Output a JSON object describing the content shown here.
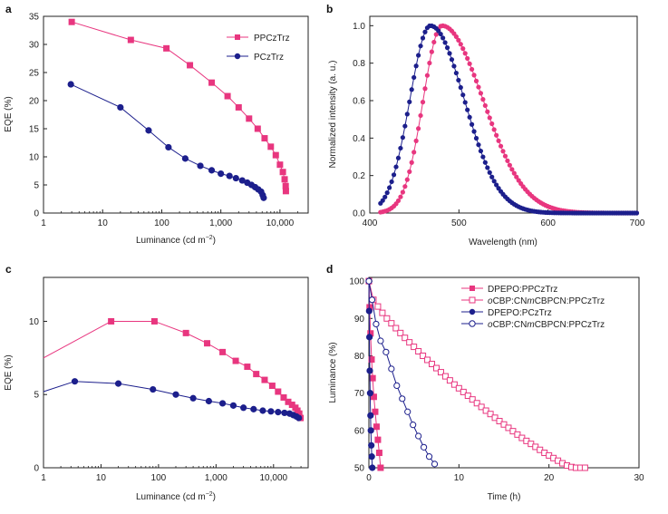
{
  "colors": {
    "pink": "#e8367f",
    "blue": "#1c1f8c",
    "axis": "#222222"
  },
  "chart_data": [
    {
      "id": "a",
      "panel_label": "a",
      "type": "line",
      "xscale": "log",
      "xlabel": "Luminance (cd m",
      "xlabel_sup": "−2",
      "ylabel": "EQE (%)",
      "xlim": [
        1,
        30000
      ],
      "ylim": [
        0,
        35
      ],
      "xticks": [
        1,
        10,
        100,
        1000,
        10000
      ],
      "xtick_labels": [
        "1",
        "10",
        "100",
        "1,000",
        "10,000"
      ],
      "yticks": [
        0,
        5,
        10,
        15,
        20,
        25,
        30,
        35
      ],
      "ytick_labels": [
        "0",
        "5",
        "10",
        "15",
        "20",
        "25",
        "30",
        "35"
      ],
      "legend": {
        "position": "top-right"
      },
      "series": [
        {
          "name": "PPCzTrz",
          "color": "pink",
          "marker": "square",
          "filled": true,
          "x": [
            3,
            30,
            120,
            300,
            700,
            1300,
            2000,
            3000,
            4200,
            5500,
            7000,
            8500,
            10000,
            11200,
            12000,
            12500,
            12600
          ],
          "y": [
            34,
            30.8,
            29.3,
            26.3,
            23.2,
            20.8,
            18.8,
            16.8,
            15,
            13.3,
            11.8,
            10.3,
            8.6,
            7.3,
            6,
            4.8,
            3.9
          ]
        },
        {
          "name": "PCzTrz",
          "color": "blue",
          "marker": "circle",
          "filled": true,
          "x": [
            2.9,
            20,
            60,
            130,
            250,
            450,
            700,
            1000,
            1400,
            1800,
            2300,
            2800,
            3300,
            3800,
            4300,
            4800,
            5100,
            5300
          ],
          "y": [
            22.9,
            18.8,
            14.7,
            11.7,
            9.7,
            8.4,
            7.6,
            7,
            6.6,
            6.2,
            5.8,
            5.4,
            5,
            4.6,
            4.2,
            3.8,
            3.2,
            2.7
          ]
        }
      ]
    },
    {
      "id": "b",
      "panel_label": "b",
      "type": "line",
      "xscale": "linear",
      "xlabel": "Wavelength (nm)",
      "ylabel": "Normalized intensity (a. u.)",
      "xlim": [
        400,
        700
      ],
      "ylim": [
        0,
        1.05
      ],
      "xticks": [
        400,
        500,
        600,
        700
      ],
      "xtick_labels": [
        "400",
        "500",
        "600",
        "700"
      ],
      "yticks": [
        0,
        0.2,
        0.4,
        0.6,
        0.8,
        1.0
      ],
      "ytick_labels": [
        "0.0",
        "0.2",
        "0.4",
        "0.6",
        "0.8",
        "1.0"
      ],
      "series": [
        {
          "name": "PPCzTrz",
          "color": "pink",
          "marker": "circle",
          "filled": true,
          "peak": 481,
          "sigma_left": 21,
          "sigma_right": 46,
          "x_start": 412,
          "x_end": 700,
          "x_step": 2.5
        },
        {
          "name": "PCzTrz",
          "color": "blue",
          "marker": "circle",
          "filled": true,
          "peak": 468,
          "sigma_left": 23,
          "sigma_right": 38,
          "x_start": 412,
          "x_end": 700,
          "x_step": 2.5
        }
      ]
    },
    {
      "id": "c",
      "panel_label": "c",
      "type": "line",
      "xscale": "log",
      "xlabel": "Luminance (cd m",
      "xlabel_sup": "−2",
      "ylabel": "EQE (%)",
      "xlim": [
        1,
        40000
      ],
      "ylim": [
        0,
        13
      ],
      "xticks": [
        1,
        10,
        100,
        1000,
        10000
      ],
      "xtick_labels": [
        "1",
        "10",
        "100",
        "1,000",
        "10,000"
      ],
      "yticks": [
        0,
        5,
        10
      ],
      "ytick_labels": [
        "0",
        "5",
        "10"
      ],
      "series": [
        {
          "name": "PPCzTrz",
          "color": "pink",
          "marker": "square",
          "filled": true,
          "x": [
            15,
            85,
            300,
            700,
            1300,
            2200,
            3500,
            5000,
            7000,
            9500,
            12000,
            15000,
            18000,
            21000,
            24000,
            26000,
            28000,
            29500
          ],
          "y": [
            10,
            10,
            9.2,
            8.5,
            7.9,
            7.3,
            6.9,
            6.4,
            6,
            5.6,
            5.2,
            4.8,
            4.5,
            4.3,
            4.1,
            3.9,
            3.7,
            3.4
          ]
        },
        {
          "name": "PCzTrz",
          "color": "blue",
          "marker": "circle",
          "filled": true,
          "x": [
            3.5,
            20,
            80,
            200,
            400,
            750,
            1300,
            2000,
            3000,
            4500,
            6500,
            9000,
            12000,
            15500,
            19000,
            22000,
            25000,
            27500
          ],
          "y": [
            5.9,
            5.75,
            5.35,
            5,
            4.75,
            4.55,
            4.4,
            4.25,
            4.1,
            4,
            3.9,
            3.85,
            3.8,
            3.75,
            3.7,
            3.6,
            3.5,
            3.4
          ]
        }
      ],
      "line_only": [
        {
          "color": "pink",
          "x": [
            1,
            15
          ],
          "y": [
            7.5,
            10
          ]
        },
        {
          "color": "blue",
          "x": [
            1,
            3.5
          ],
          "y": [
            5.2,
            5.9
          ]
        }
      ]
    },
    {
      "id": "d",
      "panel_label": "d",
      "type": "line",
      "xscale": "linear",
      "xlabel": "Time (h)",
      "ylabel": "Luminance (%)",
      "xlim": [
        0,
        30
      ],
      "ylim": [
        50,
        101
      ],
      "xticks": [
        0,
        10,
        20,
        30
      ],
      "xtick_labels": [
        "0",
        "10",
        "20",
        "30"
      ],
      "yticks": [
        50,
        60,
        70,
        80,
        90,
        100
      ],
      "ytick_labels": [
        "50",
        "60",
        "70",
        "80",
        "90",
        "100"
      ],
      "legend": {
        "position": "top-right"
      },
      "series": [
        {
          "name": "DPEPO:PPCzTrz",
          "color": "pink",
          "marker": "square",
          "filled": true,
          "x": [
            0,
            0.08,
            0.18,
            0.3,
            0.42,
            0.55,
            0.7,
            0.85,
            1.0,
            1.15,
            1.3
          ],
          "y": [
            100,
            93,
            86,
            79,
            74,
            69,
            65,
            61,
            57.5,
            54,
            50
          ]
        },
        {
          "name": "oCBP:CNmCBPCN:PPCzTrz",
          "name_parts": [
            "o",
            "CBP:CN",
            "m",
            "CBPCN:PPCzTrz"
          ],
          "color": "pink",
          "marker": "square",
          "filled": false,
          "x": [
            0,
            0.5,
            1,
            1.5,
            2,
            2.5,
            3,
            3.5,
            4,
            4.5,
            5,
            5.5,
            6,
            6.5,
            7,
            7.5,
            8,
            8.5,
            9,
            9.5,
            10,
            10.5,
            11,
            11.5,
            12,
            12.5,
            13,
            13.5,
            14,
            14.5,
            15,
            15.5,
            16,
            16.5,
            17,
            17.5,
            18,
            18.5,
            19,
            19.5,
            20,
            20.5,
            21,
            21.5,
            22,
            22.5,
            23,
            23.5,
            24
          ],
          "y": [
            100,
            95,
            93.2,
            91.5,
            90,
            88.7,
            87.4,
            86.1,
            84.8,
            83.6,
            82.4,
            81.2,
            80,
            78.9,
            77.8,
            76.7,
            75.6,
            74.5,
            73.4,
            72.3,
            71.3,
            70.3,
            69.3,
            68.3,
            67.3,
            66.3,
            65.3,
            64.4,
            63.4,
            62.5,
            61.6,
            60.7,
            59.8,
            58.9,
            58,
            57.2,
            56.4,
            55.6,
            54.8,
            54,
            53.3,
            52.6,
            51.9,
            51.2,
            50.6,
            50.2,
            50,
            50,
            50
          ]
        },
        {
          "name": "DPEPO:PCzTrz",
          "color": "blue",
          "marker": "circle",
          "filled": true,
          "x": [
            0,
            0.03,
            0.06,
            0.1,
            0.14,
            0.18,
            0.22,
            0.27,
            0.32,
            0.38
          ],
          "y": [
            100,
            92,
            85,
            76,
            70,
            64,
            60,
            56,
            53,
            50
          ]
        },
        {
          "name": "oCBP:CNmCBPCN:PPCzTrz",
          "name_parts": [
            "o",
            "CBP:CN",
            "m",
            "CBPCN:PPCzTrz"
          ],
          "color": "blue",
          "marker": "circle",
          "filled": false,
          "x": [
            0,
            0.35,
            0.8,
            1.3,
            1.9,
            2.5,
            3.1,
            3.7,
            4.3,
            4.9,
            5.5,
            6.1,
            6.7,
            7.3
          ],
          "y": [
            100,
            95,
            88.5,
            84,
            81,
            76.5,
            72,
            68.5,
            65,
            61.5,
            58.5,
            55.5,
            53,
            51
          ]
        }
      ]
    }
  ]
}
